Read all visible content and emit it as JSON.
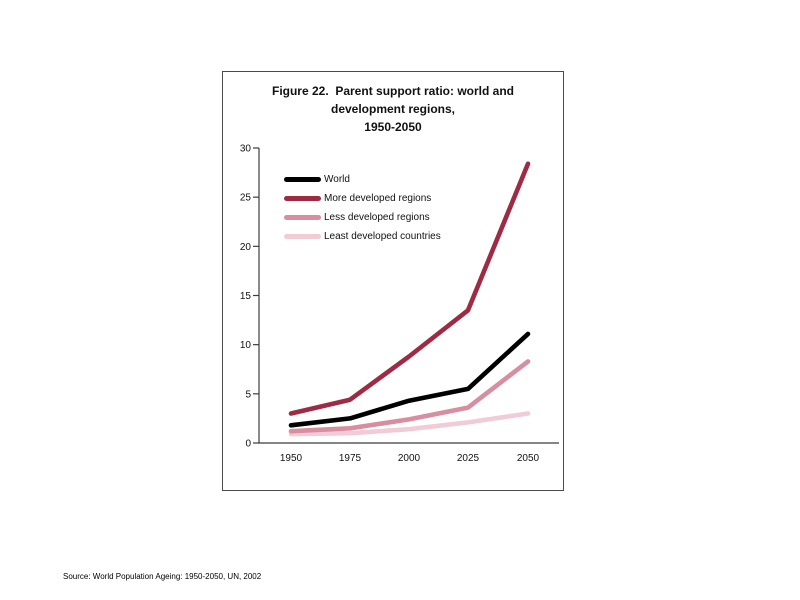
{
  "chart_panel": {
    "title_lines": [
      "Figure 22.  Parent support ratio: world and",
      "development regions,",
      "1950-2050"
    ]
  },
  "source_note": "Source: World Population Ageing: 1950-2050, UN, 2002",
  "chart_data": {
    "type": "line",
    "title": "Figure 22. Parent support ratio: world and development regions, 1950-2050",
    "x": [
      1950,
      1975,
      2000,
      2025,
      2050
    ],
    "x_tick_labels": [
      "1950",
      "1975",
      "2000",
      "2025",
      "2050"
    ],
    "y_ticks": [
      0,
      5,
      10,
      15,
      20,
      25,
      30
    ],
    "ylim": [
      0,
      30
    ],
    "xlabel": "",
    "ylabel": "",
    "grid": false,
    "legend_position": "inside-top-left",
    "axis_color": "#3c3c3c",
    "series": [
      {
        "name": "World",
        "color": "#000000",
        "values": [
          1.8,
          2.5,
          4.3,
          5.5,
          11.1
        ]
      },
      {
        "name": "More developed regions",
        "color": "#9e2b43",
        "values": [
          3.0,
          4.4,
          8.8,
          13.5,
          28.4
        ]
      },
      {
        "name": "Less developed regions",
        "color": "#d88da0",
        "values": [
          1.2,
          1.5,
          2.4,
          3.6,
          8.3
        ]
      },
      {
        "name": "Least developed countries",
        "color": "#f1ccd6",
        "values": [
          0.9,
          1.0,
          1.4,
          2.1,
          3.0
        ]
      }
    ]
  }
}
